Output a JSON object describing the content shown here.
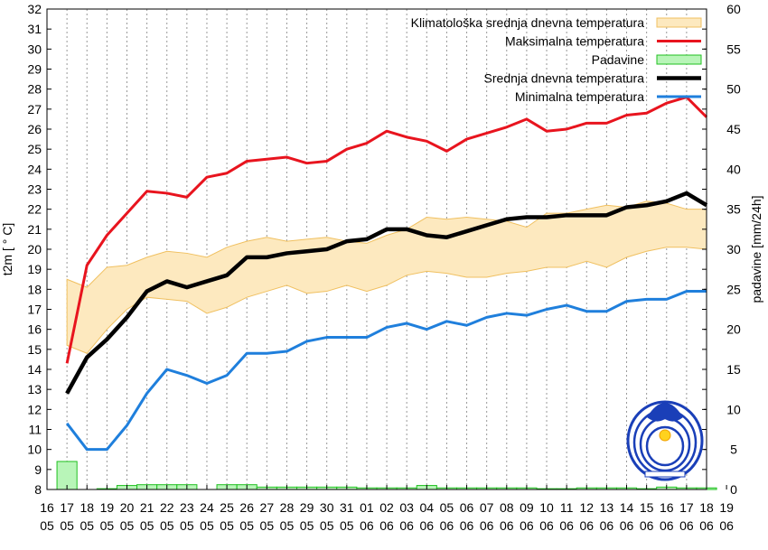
{
  "chart_data": {
    "type": "line",
    "title": "",
    "ylabel": "t2m [ ° C]",
    "y2label": "padavine [mm/24h]",
    "ylim": [
      8,
      32
    ],
    "y2lim": [
      0,
      60
    ],
    "yticks": [
      8,
      9,
      10,
      11,
      12,
      13,
      14,
      15,
      16,
      17,
      18,
      19,
      20,
      21,
      22,
      23,
      24,
      25,
      26,
      27,
      28,
      29,
      30,
      31,
      32
    ],
    "y2ticks": [
      0,
      5,
      10,
      15,
      20,
      25,
      30,
      35,
      40,
      45,
      50,
      55,
      60
    ],
    "xlim": [
      16,
      49
    ],
    "x_tick_day": [
      "16",
      "17",
      "18",
      "19",
      "20",
      "21",
      "22",
      "23",
      "24",
      "25",
      "26",
      "27",
      "28",
      "29",
      "30",
      "31",
      "01",
      "02",
      "03",
      "04",
      "05",
      "06",
      "07",
      "08",
      "09",
      "10",
      "11",
      "12",
      "13",
      "14",
      "15",
      "16",
      "17",
      "18",
      "19"
    ],
    "x_tick_month": [
      "05",
      "05",
      "05",
      "05",
      "05",
      "05",
      "05",
      "05",
      "05",
      "05",
      "05",
      "05",
      "05",
      "05",
      "05",
      "05",
      "06",
      "06",
      "06",
      "06",
      "06",
      "06",
      "06",
      "06",
      "06",
      "06",
      "06",
      "06",
      "06",
      "06",
      "06",
      "06",
      "06",
      "06",
      "06"
    ],
    "grid": "vertical-dashed",
    "legend_position": "top-right",
    "legend": [
      {
        "label": "Klimatološka srednja dnevna temperatura",
        "key": "clim"
      },
      {
        "label": "Maksimalna temperatura",
        "key": "max"
      },
      {
        "label": "Padavine",
        "key": "precip"
      },
      {
        "label": "Srednja dnevna temperatura",
        "key": "mean"
      },
      {
        "label": "Minimalna temperatura",
        "key": "min"
      }
    ],
    "colors": {
      "clim_fill": "#fde9bf",
      "clim_stroke": "#f0c060",
      "max": "#e8141e",
      "precip_fill": "#b8f5b8",
      "precip_stroke": "#20c020",
      "mean": "#000000",
      "min": "#1f7fdc",
      "grid": "#999999"
    },
    "series": {
      "x": [
        17,
        18,
        19,
        20,
        21,
        22,
        23,
        24,
        25,
        26,
        27,
        28,
        29,
        30,
        31,
        32,
        33,
        34,
        35,
        36,
        37,
        38,
        39,
        40,
        41,
        42,
        43,
        44,
        45,
        46,
        47,
        48,
        49
      ],
      "max": [
        14.3,
        19.2,
        20.7,
        21.8,
        22.9,
        22.8,
        22.6,
        23.6,
        23.8,
        24.4,
        24.5,
        24.6,
        24.3,
        24.4,
        25.0,
        25.3,
        25.9,
        25.6,
        25.4,
        24.9,
        25.5,
        25.8,
        26.1,
        26.5,
        25.9,
        26.0,
        26.3,
        26.3,
        26.7,
        26.8,
        27.3,
        27.6,
        26.6
      ],
      "mean": [
        12.8,
        14.6,
        15.5,
        16.6,
        17.9,
        18.4,
        18.1,
        18.4,
        18.7,
        19.6,
        19.6,
        19.8,
        19.9,
        20.0,
        20.4,
        20.5,
        21.0,
        21.0,
        20.7,
        20.6,
        20.9,
        21.2,
        21.5,
        21.6,
        21.6,
        21.7,
        21.7,
        21.7,
        22.1,
        22.2,
        22.4,
        22.8,
        22.2
      ],
      "min": [
        11.3,
        10.0,
        10.0,
        11.2,
        12.8,
        14.0,
        13.7,
        13.3,
        13.7,
        14.8,
        14.8,
        14.9,
        15.4,
        15.6,
        15.6,
        15.6,
        16.1,
        16.3,
        16.0,
        16.4,
        16.2,
        16.6,
        16.8,
        16.7,
        17.0,
        17.2,
        16.9,
        16.9,
        17.4,
        17.5,
        17.5,
        17.9,
        17.9
      ],
      "clim_upper": [
        18.5,
        18.1,
        19.1,
        19.2,
        19.6,
        19.9,
        19.8,
        19.6,
        20.1,
        20.4,
        20.6,
        20.4,
        20.5,
        20.6,
        20.4,
        20.3,
        20.7,
        21.0,
        21.6,
        21.5,
        21.6,
        21.5,
        21.4,
        21.1,
        21.8,
        21.8,
        22.0,
        22.2,
        22.1,
        22.4,
        22.3,
        22.0,
        22.0
      ],
      "clim_lower": [
        15.2,
        14.8,
        16.0,
        17.0,
        17.6,
        17.5,
        17.4,
        16.8,
        17.1,
        17.6,
        17.9,
        18.2,
        17.8,
        17.9,
        18.2,
        17.9,
        18.2,
        18.7,
        18.9,
        18.8,
        18.6,
        18.6,
        18.8,
        18.9,
        19.1,
        19.1,
        19.4,
        19.1,
        19.6,
        19.9,
        20.1,
        20.1,
        20.0
      ],
      "precip": [
        3.5,
        0.0,
        0.1,
        0.5,
        0.6,
        0.6,
        0.6,
        0.0,
        0.6,
        0.6,
        0.3,
        0.3,
        0.3,
        0.3,
        0.3,
        0.2,
        0.2,
        0.2,
        0.5,
        0.2,
        0.2,
        0.2,
        0.2,
        0.2,
        0.1,
        0.1,
        0.2,
        0.2,
        0.2,
        0.1,
        0.3,
        0.2,
        0.2
      ]
    }
  }
}
